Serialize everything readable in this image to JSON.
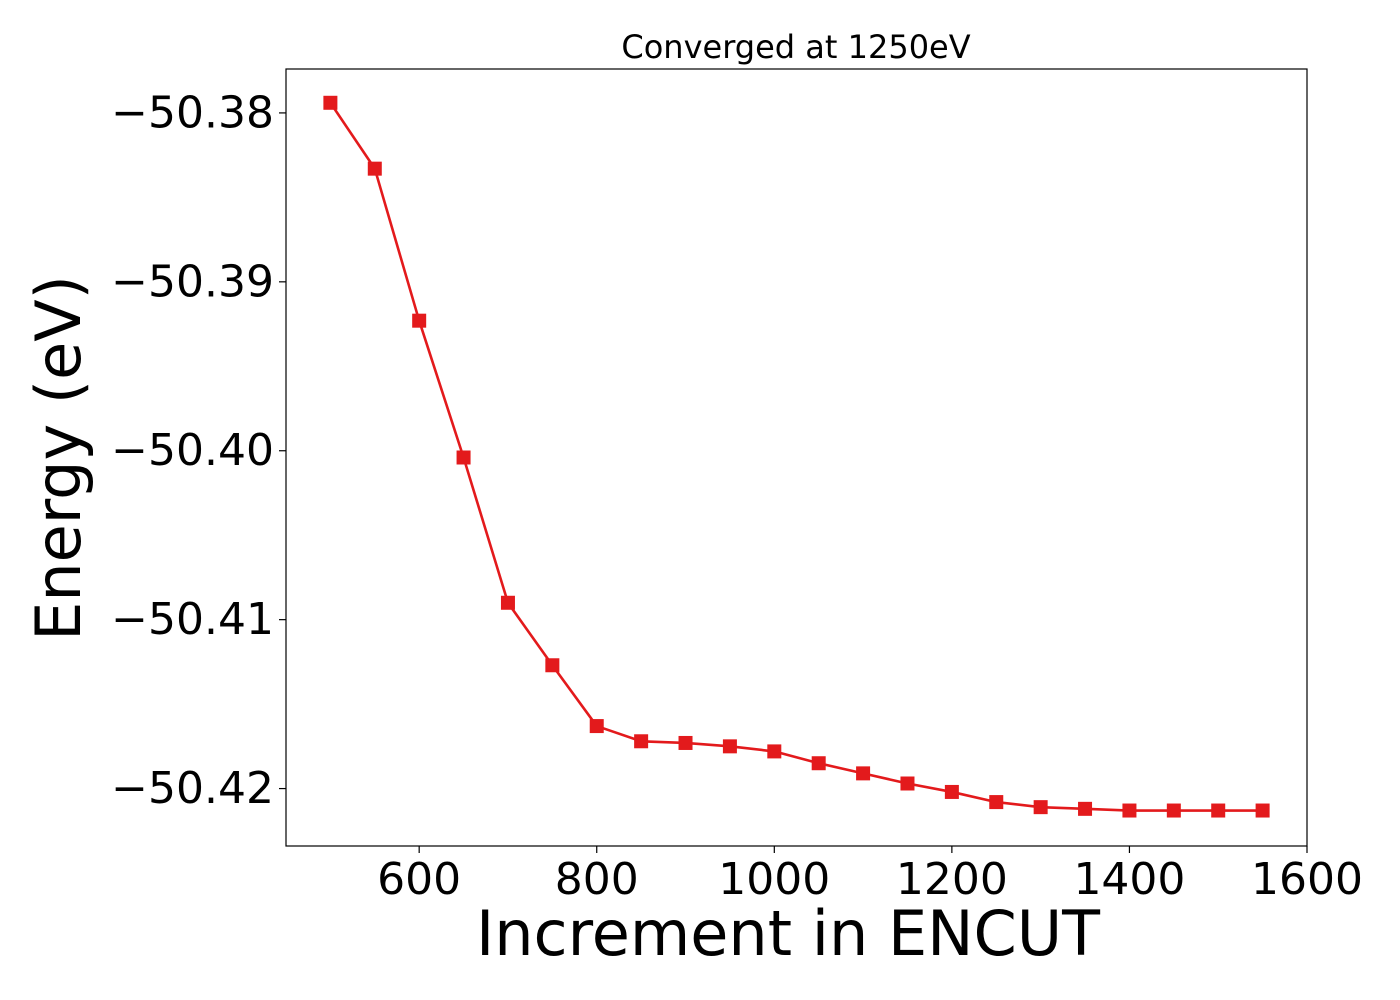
{
  "colors": {
    "series": "#e31a1c",
    "axis": "#000000",
    "background": "#ffffff"
  },
  "chart_data": {
    "type": "line",
    "title": "Converged at 1250eV",
    "xlabel": "Increment in ENCUT",
    "ylabel": "Energy (eV)",
    "xlim": [
      450,
      1600
    ],
    "ylim": [
      -50.4234,
      -50.3774
    ],
    "grid": false,
    "marker": "square",
    "xticks": [
      600,
      800,
      1000,
      1200,
      1400,
      1600
    ],
    "xtick_labels": [
      "600",
      "800",
      "1000",
      "1200",
      "1400",
      "1600"
    ],
    "yticks": [
      -50.38,
      -50.39,
      -50.4,
      -50.41,
      -50.42
    ],
    "ytick_labels": [
      "−50.38",
      "−50.39",
      "−50.40",
      "−50.41",
      "−50.42"
    ],
    "x": [
      500,
      550,
      600,
      650,
      700,
      750,
      800,
      850,
      900,
      950,
      1000,
      1050,
      1100,
      1150,
      1200,
      1250,
      1300,
      1350,
      1400,
      1450,
      1500,
      1550
    ],
    "series": [
      {
        "values": [
          -50.3794,
          -50.3833,
          -50.3923,
          -50.4004,
          -50.409,
          -50.4127,
          -50.4163,
          -50.4172,
          -50.4173,
          -50.4175,
          -50.4178,
          -50.4185,
          -50.4191,
          -50.4197,
          -50.4202,
          -50.4208,
          -50.4211,
          -50.4212,
          -50.4213,
          -50.4213,
          -50.4213,
          -50.4213
        ]
      }
    ]
  }
}
